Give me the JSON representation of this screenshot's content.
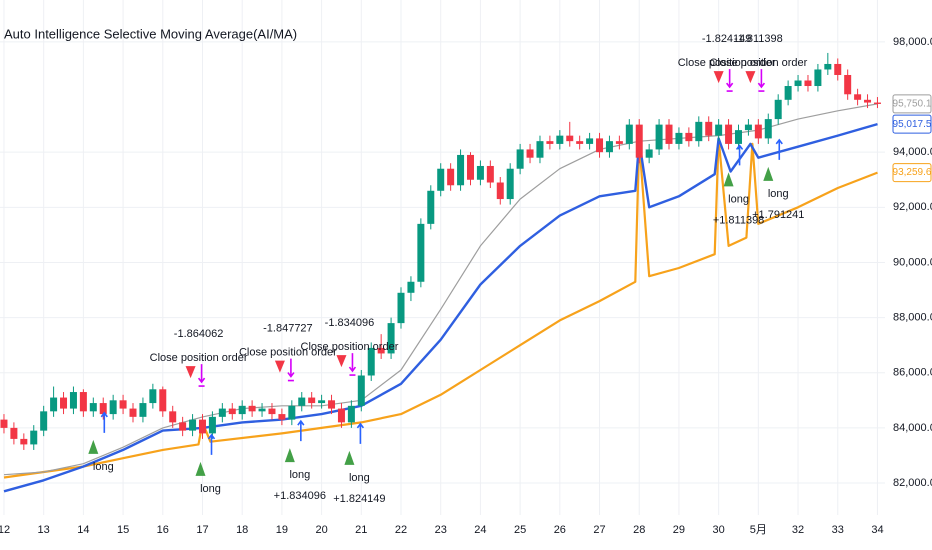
{
  "chart_data": {
    "type": "candlestick",
    "title": "Auto Intelligence Selective Moving Average(AI/MA)",
    "up_color": "#089981",
    "down_color": "#f23645",
    "grid": true,
    "xlim": [
      11.9,
      34.19
    ],
    "xticks": [
      12,
      13,
      14,
      15,
      16,
      17,
      18,
      19,
      20,
      21,
      22,
      23,
      24,
      25,
      26,
      27,
      28,
      29,
      30,
      {
        "value": 31,
        "label": "5月"
      },
      32,
      33,
      34
    ],
    "ylim": [
      80840,
      99520
    ],
    "yticks": [
      {
        "value": 82000,
        "label": "82,000.0"
      },
      {
        "value": 84000,
        "label": "84,000.0"
      },
      {
        "value": 86000,
        "label": "86,000.0"
      },
      {
        "value": 88000,
        "label": "88,000.0"
      },
      {
        "value": 90000,
        "label": "90,000.0"
      },
      {
        "value": 92000,
        "label": "92,000.0"
      },
      {
        "value": 94000,
        "label": "94,000.0"
      },
      {
        "value": 98000,
        "label": "98,000.0"
      }
    ],
    "x": [
      12,
      12.25,
      12.5,
      12.75,
      13,
      13.25,
      13.5,
      13.75,
      14,
      14.25,
      14.5,
      14.75,
      15,
      15.25,
      15.5,
      15.75,
      16,
      16.25,
      16.5,
      16.75,
      17,
      17.25,
      17.5,
      17.75,
      18,
      18.25,
      18.5,
      18.75,
      19,
      19.25,
      19.5,
      19.75,
      20,
      20.25,
      20.5,
      20.75,
      21,
      21.25,
      21.5,
      21.75,
      22,
      22.25,
      22.5,
      22.75,
      23,
      23.25,
      23.5,
      23.75,
      24,
      24.25,
      24.5,
      24.75,
      25,
      25.25,
      25.5,
      25.75,
      26,
      26.25,
      26.5,
      26.75,
      27,
      27.25,
      27.5,
      27.75,
      28,
      28.25,
      28.5,
      28.75,
      29,
      29.25,
      29.5,
      29.75,
      30,
      30.25,
      30.5,
      30.75,
      31,
      31.25,
      31.5,
      31.75,
      32,
      32.25,
      32.5,
      32.75,
      33,
      33.25,
      33.5,
      33.75,
      34
    ],
    "ohlc": [
      [
        84300,
        84500,
        83800,
        84000
      ],
      [
        84000,
        84200,
        83400,
        83600
      ],
      [
        83600,
        83800,
        83200,
        83400
      ],
      [
        83400,
        84100,
        83200,
        83900
      ],
      [
        83900,
        84800,
        83700,
        84600
      ],
      [
        84600,
        85500,
        84400,
        85100
      ],
      [
        85100,
        85300,
        84500,
        84700
      ],
      [
        84700,
        85500,
        84500,
        85300
      ],
      [
        85300,
        85400,
        84400,
        84600
      ],
      [
        84600,
        85100,
        84400,
        84900
      ],
      [
        84900,
        85100,
        84300,
        84500
      ],
      [
        84500,
        85200,
        84300,
        85000
      ],
      [
        85000,
        85200,
        84500,
        84700
      ],
      [
        84700,
        84900,
        84200,
        84400
      ],
      [
        84400,
        85100,
        84200,
        84900
      ],
      [
        84900,
        85600,
        84700,
        85400
      ],
      [
        85400,
        85500,
        84400,
        84600
      ],
      [
        84600,
        84800,
        84000,
        84200
      ],
      [
        84200,
        84400,
        83700,
        83900
      ],
      [
        83900,
        84500,
        83700,
        84300
      ],
      [
        84300,
        84500,
        83600,
        83800
      ],
      [
        83800,
        84600,
        83600,
        84400
      ],
      [
        84400,
        84900,
        84200,
        84700
      ],
      [
        84700,
        84900,
        84300,
        84500
      ],
      [
        84500,
        85000,
        84300,
        84800
      ],
      [
        84800,
        85000,
        84400,
        84600
      ],
      [
        84600,
        84900,
        84400,
        84700
      ],
      [
        84700,
        84900,
        84300,
        84500
      ],
      [
        84500,
        84700,
        84100,
        84300
      ],
      [
        84300,
        85000,
        84100,
        84800
      ],
      [
        84800,
        85300,
        84600,
        85100
      ],
      [
        85100,
        85300,
        84700,
        84900
      ],
      [
        84900,
        85200,
        84700,
        85000
      ],
      [
        85000,
        85200,
        84500,
        84700
      ],
      [
        84700,
        84900,
        84000,
        84200
      ],
      [
        84200,
        85000,
        84000,
        84800
      ],
      [
        84800,
        86100,
        84600,
        85900
      ],
      [
        85900,
        87100,
        85700,
        86900
      ],
      [
        86900,
        87400,
        86500,
        86700
      ],
      [
        86700,
        88000,
        86500,
        87800
      ],
      [
        87800,
        89100,
        87600,
        88900
      ],
      [
        88900,
        89500,
        88600,
        89300
      ],
      [
        89300,
        91600,
        89100,
        91400
      ],
      [
        91400,
        92800,
        91200,
        92600
      ],
      [
        92600,
        93600,
        92400,
        93400
      ],
      [
        93400,
        93600,
        92600,
        92800
      ],
      [
        92800,
        94100,
        92600,
        93900
      ],
      [
        93900,
        94000,
        92800,
        93000
      ],
      [
        93000,
        93700,
        92800,
        93500
      ],
      [
        93500,
        93700,
        92700,
        92900
      ],
      [
        92900,
        93100,
        92100,
        92300
      ],
      [
        92300,
        93600,
        92100,
        93400
      ],
      [
        93400,
        94300,
        93200,
        94100
      ],
      [
        94100,
        94300,
        93600,
        93800
      ],
      [
        93800,
        94600,
        93600,
        94400
      ],
      [
        94400,
        94600,
        94100,
        94300
      ],
      [
        94300,
        94800,
        94100,
        94600
      ],
      [
        94600,
        95100,
        94200,
        94400
      ],
      [
        94400,
        94600,
        94100,
        94300
      ],
      [
        94300,
        94700,
        94100,
        94500
      ],
      [
        94500,
        94700,
        93800,
        94000
      ],
      [
        94000,
        94600,
        93800,
        94400
      ],
      [
        94400,
        94600,
        94100,
        94300
      ],
      [
        94300,
        95200,
        94100,
        95000
      ],
      [
        95000,
        95200,
        93600,
        93800
      ],
      [
        93800,
        94300,
        93600,
        94100
      ],
      [
        94100,
        95200,
        93900,
        95000
      ],
      [
        95000,
        95200,
        94100,
        94300
      ],
      [
        94300,
        94900,
        94100,
        94700
      ],
      [
        94700,
        94900,
        94200,
        94400
      ],
      [
        94400,
        95300,
        94200,
        95100
      ],
      [
        95100,
        95300,
        94400,
        94600
      ],
      [
        94600,
        95200,
        94400,
        95000
      ],
      [
        95000,
        95200,
        94100,
        94300
      ],
      [
        94300,
        95000,
        94100,
        94800
      ],
      [
        94800,
        95200,
        94600,
        95000
      ],
      [
        95000,
        95200,
        94300,
        94500
      ],
      [
        94500,
        95400,
        94300,
        95200
      ],
      [
        95200,
        96100,
        95000,
        95900
      ],
      [
        95900,
        96600,
        95700,
        96400
      ],
      [
        96400,
        96800,
        96200,
        96600
      ],
      [
        96600,
        96800,
        96200,
        96400
      ],
      [
        96400,
        97200,
        96200,
        97000
      ],
      [
        97000,
        97600,
        96800,
        97200
      ],
      [
        97200,
        97400,
        96600,
        96800
      ],
      [
        96800,
        97000,
        95900,
        96100
      ],
      [
        96100,
        96300,
        95700,
        95900
      ],
      [
        95900,
        96100,
        95600,
        95800
      ],
      [
        95800,
        96000,
        95600,
        95750
      ]
    ],
    "lines": [
      {
        "color": "#f7a21b",
        "width": 2.2,
        "last_label": "93,259.6",
        "x": [
          12,
          13,
          14,
          15,
          16,
          16.9,
          17,
          17.2,
          19,
          20,
          21,
          22,
          23,
          24,
          25,
          26,
          27,
          27.9,
          28,
          28.25,
          29,
          29.9,
          30,
          30.25,
          30.7,
          30.85,
          31,
          32,
          33,
          34
        ],
        "values": [
          82200,
          82400,
          82600,
          82900,
          83200,
          83400,
          84200,
          83500,
          83800,
          84000,
          84200,
          84500,
          85200,
          86100,
          87000,
          87900,
          88600,
          89300,
          94400,
          89500,
          89800,
          90300,
          94500,
          90600,
          90900,
          94300,
          91400,
          92000,
          92700,
          93259.6
        ]
      },
      {
        "color": "#9e9e9e",
        "width": 1.2,
        "last_label": "95,750.1",
        "x": [
          12,
          13,
          14,
          15,
          16,
          17,
          18,
          19,
          20,
          21,
          22,
          23,
          24,
          25,
          26,
          27,
          28,
          29,
          30,
          31,
          32,
          33,
          34
        ],
        "values": [
          82300,
          82400,
          82700,
          83300,
          84000,
          84400,
          84700,
          84800,
          84800,
          85000,
          86100,
          88300,
          90600,
          92300,
          93400,
          94100,
          94400,
          94500,
          94600,
          94800,
          95200,
          95500,
          95750.1
        ]
      },
      {
        "color": "#2f5fe0",
        "width": 2.4,
        "last_label": "95,017.5",
        "x": [
          12,
          13,
          14,
          15,
          16,
          17,
          18,
          19,
          20,
          21,
          22,
          23,
          24,
          25,
          26,
          27,
          27.9,
          28,
          28.25,
          29,
          29.9,
          30,
          30.3,
          30.8,
          31,
          32,
          33,
          34
        ],
        "values": [
          81700,
          82100,
          82600,
          83200,
          83900,
          84000,
          84200,
          84300,
          84500,
          84800,
          85600,
          87200,
          89200,
          90600,
          91700,
          92400,
          92600,
          94400,
          92000,
          92400,
          93200,
          94500,
          93300,
          94300,
          93800,
          94200,
          94600,
          95017.5
        ]
      }
    ],
    "signals": [
      {
        "kind": "close",
        "x": 16.7,
        "texts": [
          "-1.864062",
          "Close position order"
        ]
      },
      {
        "kind": "close",
        "x": 18.95,
        "texts": [
          "-1.847727",
          "Close position order"
        ]
      },
      {
        "kind": "close",
        "x": 20.5,
        "texts": [
          "-1.834096",
          "Close position order"
        ]
      },
      {
        "kind": "close",
        "x": 30.0,
        "texts": [
          "-1.824149",
          "Close position order"
        ]
      },
      {
        "kind": "close",
        "x": 30.8,
        "texts": [
          "-1.811398",
          "Close position order"
        ]
      },
      {
        "kind": "long",
        "x": 14.25,
        "texts": [
          "long"
        ]
      },
      {
        "kind": "long",
        "x": 16.95,
        "texts": [
          "long"
        ]
      },
      {
        "kind": "long",
        "x": 19.2,
        "texts": [
          "long",
          "+1.834096"
        ]
      },
      {
        "kind": "long",
        "x": 20.7,
        "texts": [
          "long",
          "+1.824149"
        ]
      },
      {
        "kind": "long",
        "x": 30.25,
        "texts": [
          "long",
          "+1.811398"
        ]
      },
      {
        "kind": "long",
        "x": 31.25,
        "texts": [
          "long",
          "+1.791241"
        ]
      }
    ]
  }
}
